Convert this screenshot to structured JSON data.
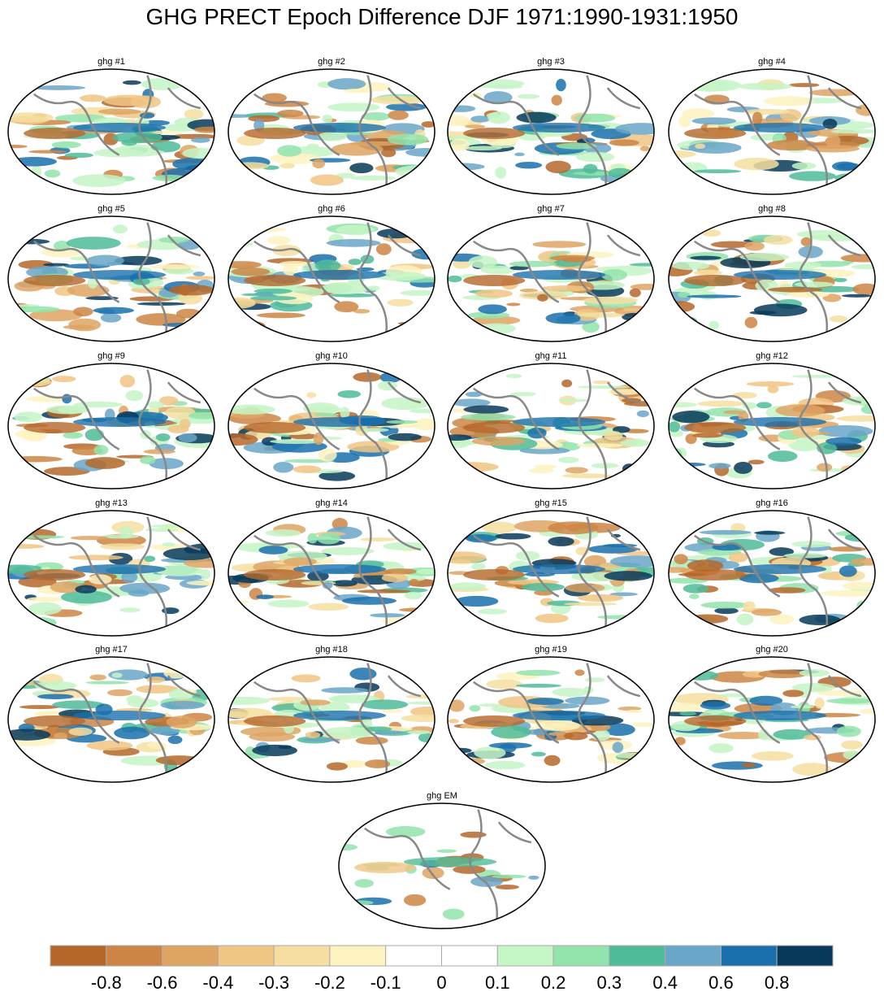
{
  "title": "GHG PRECT Epoch Difference DJF 1971:1990-1931:1950",
  "panels": [
    {
      "label": "ghg #1"
    },
    {
      "label": "ghg #2"
    },
    {
      "label": "ghg #3"
    },
    {
      "label": "ghg #4"
    },
    {
      "label": "ghg #5"
    },
    {
      "label": "ghg #6"
    },
    {
      "label": "ghg #7"
    },
    {
      "label": "ghg #8"
    },
    {
      "label": "ghg #9"
    },
    {
      "label": "ghg #10"
    },
    {
      "label": "ghg #11"
    },
    {
      "label": "ghg #12"
    },
    {
      "label": "ghg #13"
    },
    {
      "label": "ghg #14"
    },
    {
      "label": "ghg #15"
    },
    {
      "label": "ghg #16"
    },
    {
      "label": "ghg #17"
    },
    {
      "label": "ghg #18"
    },
    {
      "label": "ghg #19"
    },
    {
      "label": "ghg #20"
    },
    {
      "label": "ghg EM"
    }
  ],
  "colorbar": {
    "colors": [
      "#b5672a",
      "#cc8544",
      "#dea464",
      "#f0c684",
      "#f5dea0",
      "#fdf3c0",
      "#ffffff",
      "#ffffff",
      "#c6f5c6",
      "#92e3ac",
      "#4fbb99",
      "#6aa6c8",
      "#1a70ad",
      "#073a5a"
    ],
    "labels": [
      -0.8,
      -0.6,
      -0.4,
      -0.3,
      -0.2,
      -0.1,
      0,
      0.1,
      0.2,
      0.3,
      0.4,
      0.6,
      0.8
    ]
  }
}
